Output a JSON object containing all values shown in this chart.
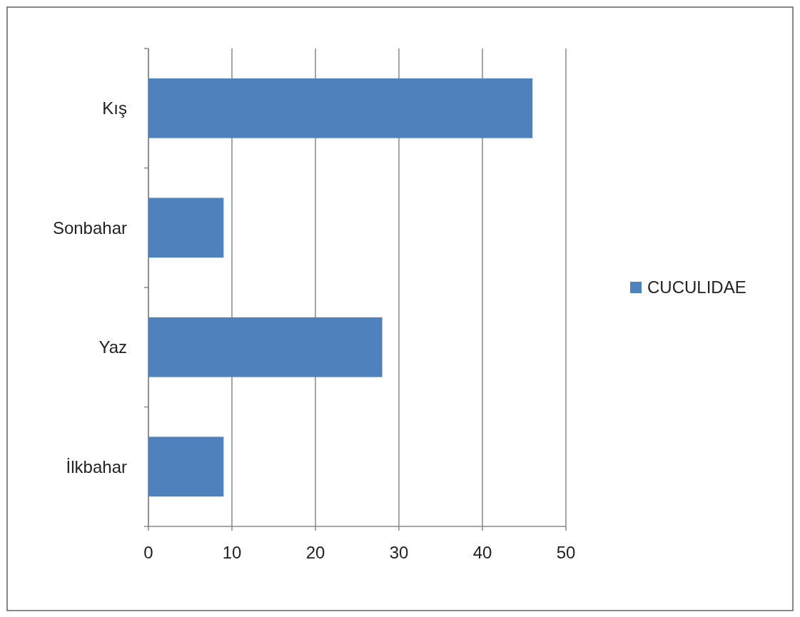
{
  "chart_data": {
    "type": "bar",
    "orientation": "horizontal",
    "categories": [
      "Kış",
      "Sonbahar",
      "Yaz",
      "İlkbahar"
    ],
    "series": [
      {
        "name": "CUCULIDAE",
        "color": "#4f81bd",
        "values": [
          46,
          9,
          28,
          9
        ]
      }
    ],
    "xlim": [
      0,
      50
    ],
    "xticks": [
      0,
      10,
      20,
      30,
      40,
      50
    ],
    "grid": "x",
    "legend": "right"
  }
}
